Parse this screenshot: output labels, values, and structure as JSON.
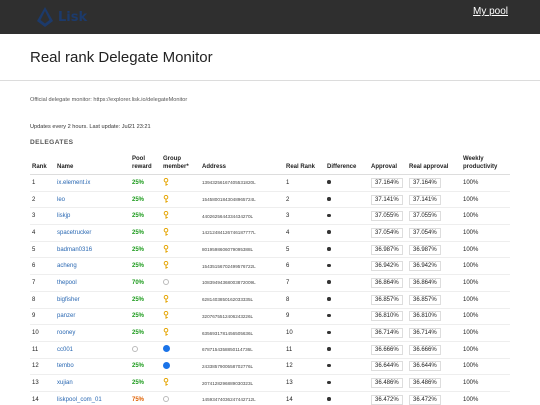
{
  "header": {
    "logo_text": "Lisk",
    "my_pool_label": "My pool"
  },
  "page": {
    "title": "Real rank Delegate Monitor",
    "official_label": "Official delegate monitor:",
    "official_url": "https://explorer.lisk.io/delegateMonitor",
    "updates_text": "Updates every 2 hours. Last update: Jul21 23:21",
    "section_title": "DELEGATES"
  },
  "colors": {
    "accent_blue": "#2867b2",
    "reward_green": "#1a9a1a",
    "reward_orange": "#e06000",
    "key_gold": "#e5a400",
    "member_blue": "#1a73e8"
  },
  "table": {
    "headers": {
      "rank": "Rank",
      "name": "Name",
      "pool_reward": "Pool reward",
      "group_member": "Group member*",
      "address": "Address",
      "real_rank": "Real Rank",
      "difference": "Difference",
      "approval": "Approval",
      "real_approval": "Real approval",
      "weekly_productivity": "Weekly productivity"
    },
    "rows": [
      {
        "rank": "1",
        "name": "ix.element.ix",
        "reward": "25%",
        "reward_color": "green",
        "member": "key",
        "address": "13943256167405531820L",
        "real_rank": "1",
        "approval": "37.164%",
        "real_approval": "37.164%",
        "productivity": "100%"
      },
      {
        "rank": "2",
        "name": "leo",
        "reward": "25%",
        "reward_color": "green",
        "member": "key",
        "address": "15458001843048965724L",
        "real_rank": "2",
        "approval": "37.141%",
        "real_approval": "37.141%",
        "productivity": "100%"
      },
      {
        "rank": "3",
        "name": "liskjp",
        "reward": "25%",
        "reward_color": "green",
        "member": "key",
        "address": "4402625644334434270L",
        "real_rank": "3",
        "approval": "37.055%",
        "real_approval": "37.055%",
        "productivity": "100%"
      },
      {
        "rank": "4",
        "name": "spacetrucker",
        "reward": "25%",
        "reward_color": "green",
        "member": "key",
        "address": "14212484126746187777L",
        "real_rank": "4",
        "approval": "37.054%",
        "real_approval": "37.054%",
        "productivity": "100%"
      },
      {
        "rank": "5",
        "name": "badman0316",
        "reward": "25%",
        "reward_color": "green",
        "member": "key",
        "address": "8019598606079095388L",
        "real_rank": "5",
        "approval": "36.987%",
        "real_approval": "36.987%",
        "productivity": "100%"
      },
      {
        "rank": "6",
        "name": "acheng",
        "reward": "25%",
        "reward_color": "green",
        "member": "key",
        "address": "15435156702499576722L",
        "real_rank": "6",
        "approval": "36.942%",
        "real_approval": "36.942%",
        "productivity": "100%"
      },
      {
        "rank": "7",
        "name": "thepool",
        "reward": "70%",
        "reward_color": "green",
        "member": "empty",
        "address": "10839494368003872009L",
        "real_rank": "7",
        "approval": "36.864%",
        "real_approval": "36.864%",
        "productivity": "100%"
      },
      {
        "rank": "8",
        "name": "bigfisher",
        "reward": "25%",
        "reward_color": "green",
        "member": "key",
        "address": "6281403850162033335L",
        "real_rank": "8",
        "approval": "36.857%",
        "real_approval": "36.857%",
        "productivity": "100%"
      },
      {
        "rank": "9",
        "name": "panzer",
        "reward": "25%",
        "reward_color": "green",
        "member": "key",
        "address": "3207675512406243226L",
        "real_rank": "9",
        "approval": "36.810%",
        "real_approval": "36.810%",
        "productivity": "100%"
      },
      {
        "rank": "10",
        "name": "rooney",
        "reward": "25%",
        "reward_color": "green",
        "member": "key",
        "address": "6356931781456505636L",
        "real_rank": "10",
        "approval": "36.714%",
        "real_approval": "36.714%",
        "productivity": "100%"
      },
      {
        "rank": "11",
        "name": "cc001",
        "reward": "",
        "reward_color": "none",
        "member": "filled",
        "address": "6787154358850114736L",
        "real_rank": "11",
        "approval": "36.666%",
        "real_approval": "36.666%",
        "productivity": "100%"
      },
      {
        "rank": "12",
        "name": "tembo",
        "reward": "25%",
        "reward_color": "green",
        "member": "filled",
        "address": "2433857900558702776L",
        "real_rank": "12",
        "approval": "36.644%",
        "real_approval": "36.644%",
        "productivity": "100%"
      },
      {
        "rank": "13",
        "name": "xujian",
        "reward": "25%",
        "reward_color": "green",
        "member": "key",
        "address": "2074128296889030323L",
        "real_rank": "13",
        "approval": "36.486%",
        "real_approval": "36.486%",
        "productivity": "100%"
      },
      {
        "rank": "14",
        "name": "liskpool_com_01",
        "reward": "75%",
        "reward_color": "orange",
        "member": "empty",
        "address": "14593474036247442712L",
        "real_rank": "14",
        "approval": "36.472%",
        "real_approval": "36.472%",
        "productivity": "100%"
      }
    ]
  }
}
